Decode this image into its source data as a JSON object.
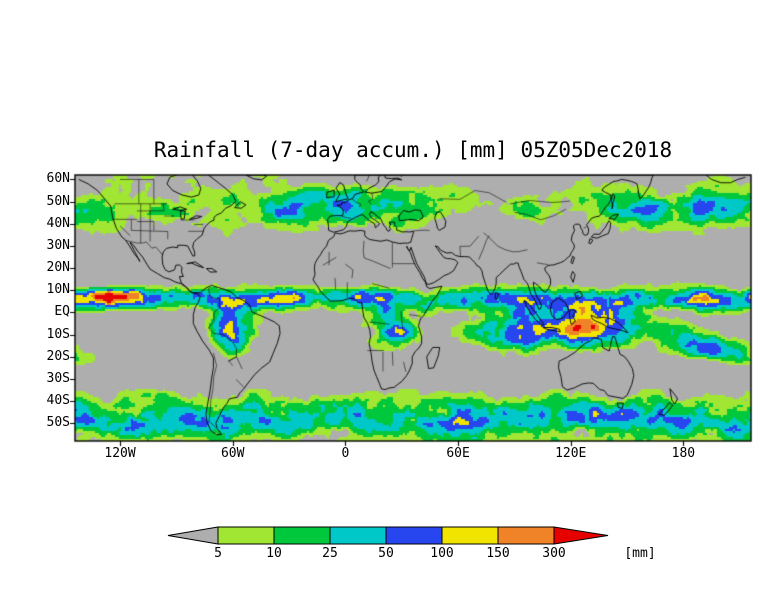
{
  "title": "Rainfall (7-day accum.) [mm] 05Z05Dec2018",
  "axes": {
    "lat_labels": [
      "60N",
      "50N",
      "40N",
      "30N",
      "20N",
      "10N",
      "EQ",
      "10S",
      "20S",
      "30S",
      "40S",
      "50S"
    ],
    "lon_labels": [
      "120W",
      "60W",
      "0",
      "60E",
      "120E",
      "180"
    ]
  },
  "legend": {
    "tick_labels": [
      "5",
      "10",
      "25",
      "50",
      "100",
      "150",
      "300"
    ],
    "unit": "[mm]",
    "band_colors": [
      "#aeaeae",
      "#a0e632",
      "#00c83c",
      "#00c8c8",
      "#2846f0",
      "#f0e400",
      "#f08228",
      "#e60000"
    ]
  },
  "chart_data": {
    "type": "heatmap",
    "title": "Rainfall (7-day accum.) [mm] 05Z05Dec2018",
    "variable": "Rainfall, 7-day accumulation",
    "unit": "mm",
    "valid_time_label": "05Z05Dec2018",
    "x_tick_labels": [
      "120W",
      "60W",
      "0",
      "60E",
      "120E",
      "180"
    ],
    "y_tick_labels": [
      "60N",
      "50N",
      "40N",
      "30N",
      "20N",
      "10N",
      "EQ",
      "10S",
      "20S",
      "30S",
      "40S",
      "50S"
    ],
    "lat_range": [
      -58,
      62
    ],
    "lon_range": [
      -144,
      216
    ],
    "projection": "equirectangular global map with coastlines and country/state borders",
    "color_scale": {
      "thresholds_mm": [
        5,
        10,
        25,
        50,
        100,
        150,
        300
      ],
      "band_colors": [
        "#aeaeae",
        "#a0e632",
        "#00c83c",
        "#00c8c8",
        "#2846f0",
        "#f0e400",
        "#f08228",
        "#e60000"
      ],
      "under_label": "less than 5 mm (grey)",
      "over_label": "greater than 300 mm (red)",
      "legend_position": "bottom"
    },
    "depicted_features": "Grey where <5mm. Heaviest totals (yellow/orange/red) along the ITCZ near 5-10N over the Pacific and Atlantic, over the maritime continent, SPCZ, tropical South America and central Africa; green/cyan/blue bands along mid-latitude storm tracks (40-60N and 30-55S); dry grey subtropical oceans, Sahara, Arabia and central Australia."
  }
}
